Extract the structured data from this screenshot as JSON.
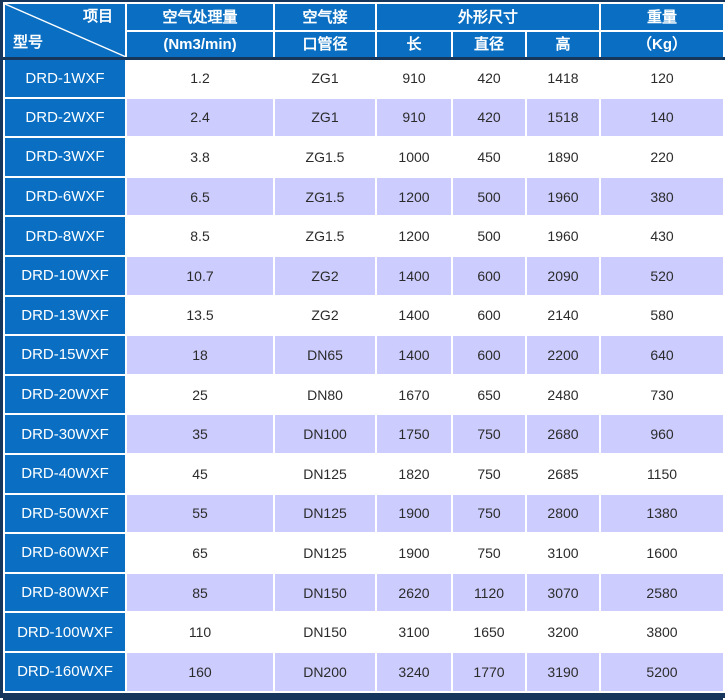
{
  "colors": {
    "header_blue": "#0a6fc2",
    "row_alt_lavender": "#ccccff",
    "row_white": "#ffffff",
    "frame_navy": "#16365c",
    "header_text": "#ffffff",
    "body_text": "#2b2b2b"
  },
  "table": {
    "corner": {
      "item_label": "项目",
      "model_label": "型号"
    },
    "header": {
      "air_volume_line1": "空气处理量",
      "air_volume_line2": "(Nm3/min)",
      "air_pipe_line1": "空气接",
      "air_pipe_line2": "口管径",
      "dimensions_group": "外形尺寸",
      "dim_length": "长",
      "dim_diameter": "直径",
      "dim_height": "高",
      "weight_line1": "重量",
      "weight_line2": "（Kg）"
    },
    "rows": [
      [
        "DRD-1WXF",
        "1.2",
        "ZG1",
        "910",
        "420",
        "1418",
        "120"
      ],
      [
        "DRD-2WXF",
        "2.4",
        "ZG1",
        "910",
        "420",
        "1518",
        "140"
      ],
      [
        "DRD-3WXF",
        "3.8",
        "ZG1.5",
        "1000",
        "450",
        "1890",
        "220"
      ],
      [
        "DRD-6WXF",
        "6.5",
        "ZG1.5",
        "1200",
        "500",
        "1960",
        "380"
      ],
      [
        "DRD-8WXF",
        "8.5",
        "ZG1.5",
        "1200",
        "500",
        "1960",
        "430"
      ],
      [
        "DRD-10WXF",
        "10.7",
        "ZG2",
        "1400",
        "600",
        "2090",
        "520"
      ],
      [
        "DRD-13WXF",
        "13.5",
        "ZG2",
        "1400",
        "600",
        "2140",
        "580"
      ],
      [
        "DRD-15WXF",
        "18",
        "DN65",
        "1400",
        "600",
        "2200",
        "640"
      ],
      [
        "DRD-20WXF",
        "25",
        "DN80",
        "1670",
        "650",
        "2480",
        "730"
      ],
      [
        "DRD-30WXF",
        "35",
        "DN100",
        "1750",
        "750",
        "2680",
        "960"
      ],
      [
        "DRD-40WXF",
        "45",
        "DN125",
        "1820",
        "750",
        "2685",
        "1150"
      ],
      [
        "DRD-50WXF",
        "55",
        "DN125",
        "1900",
        "750",
        "2800",
        "1380"
      ],
      [
        "DRD-60WXF",
        "65",
        "DN125",
        "1900",
        "750",
        "3100",
        "1600"
      ],
      [
        "DRD-80WXF",
        "85",
        "DN150",
        "2620",
        "1120",
        "3070",
        "2580"
      ],
      [
        "DRD-100WXF",
        "110",
        "DN150",
        "3100",
        "1650",
        "3200",
        "3800"
      ],
      [
        "DRD-160WXF",
        "160",
        "DN200",
        "3240",
        "1770",
        "3190",
        "5200"
      ]
    ]
  }
}
